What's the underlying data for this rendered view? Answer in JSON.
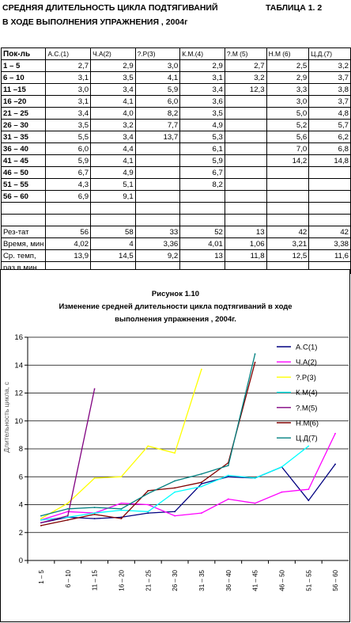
{
  "header": {
    "title_line1": "СРЕДНЯЯ ДЛИТЕЛЬНОСТЬ ЦИКЛА ПОДТЯГИВАНИЙ",
    "title_line2": "В ХОДЕ ВЫПОЛНЕНИЯ УПРАЖНЕНИЯ , 2004г",
    "table_label": "ТАБЛИЦА 1. 2"
  },
  "table": {
    "columns": [
      "Пок-ль",
      "А.С.(1)",
      "Ч.А(2)",
      "?.Р(3)",
      "К.М.(4)",
      "?.М (5)",
      "Н.М (6)",
      "Ц.Д.(7)"
    ],
    "rows": [
      {
        "label": "1  –  5",
        "values": [
          "2,7",
          "2,9",
          "3,0",
          "2,9",
          "2,7",
          "2,5",
          "3,2"
        ]
      },
      {
        "label": "6  – 10",
        "values": [
          "3,1",
          "3,5",
          "4,1",
          "3,1",
          "3,2",
          "2,9",
          "3,7"
        ]
      },
      {
        "label": "11 –15",
        "values": [
          "3,0",
          "3,4",
          "5,9",
          "3,4",
          "12,3",
          "3,3",
          "3,8"
        ]
      },
      {
        "label": "16 –20",
        "values": [
          "3,1",
          "4,1",
          "6,0",
          "3,6",
          "",
          "3,0",
          "3,7"
        ]
      },
      {
        "label": "21 – 25",
        "values": [
          "3,4",
          "4,0",
          "8,2",
          "3,5",
          "",
          "5,0",
          "4,8"
        ]
      },
      {
        "label": "26 – 30",
        "values": [
          "3,5",
          "3,2",
          "7,7",
          "4,9",
          "",
          "5,2",
          "5,7"
        ]
      },
      {
        "label": "31 – 35",
        "values": [
          "5,5",
          "3,4",
          "13,7",
          "5,3",
          "",
          "5,6",
          "6,2"
        ]
      },
      {
        "label": "36 – 40",
        "values": [
          "6,0",
          "4,4",
          "",
          "6,1",
          "",
          "7,0",
          "6,8"
        ]
      },
      {
        "label": "41 – 45",
        "values": [
          "5,9",
          "4,1",
          "",
          "5,9",
          "",
          "14,2",
          "14,8"
        ]
      },
      {
        "label": "46 – 50",
        "values": [
          "6,7",
          "4,9",
          "",
          "6,7",
          "",
          "",
          ""
        ]
      },
      {
        "label": "51 – 55",
        "values": [
          "4,3",
          "5,1",
          "",
          "8,2",
          "",
          "",
          ""
        ]
      },
      {
        "label": "56 – 60",
        "values": [
          "6,9",
          "9,1",
          "",
          "",
          "",
          "",
          ""
        ]
      }
    ],
    "summary_rows": [
      {
        "label": "Рез-тат",
        "values": [
          "56",
          "58",
          "33",
          "52",
          "13",
          "42",
          "42"
        ]
      },
      {
        "label": "Время, мин",
        "values": [
          "4,02",
          "4",
          "3,36",
          "4,01",
          "1,06",
          "3,21",
          "3,38"
        ]
      },
      {
        "label": "Ср. темп,",
        "values": [
          "13,9",
          "14,5",
          "9,2",
          "13",
          "11,8",
          "12,5",
          "11,6"
        ]
      },
      {
        "label": "раз в мин",
        "values": [
          "",
          "",
          "",
          "",
          "",
          "",
          ""
        ]
      }
    ]
  },
  "chart_data": {
    "type": "line",
    "title": "Рисунок 1.10",
    "subtitle_line1": "Изменение средней длительности цикла подтягиваний в ходе",
    "subtitle_line2": "выполнения упражнения , 2004г.",
    "ylabel": "Длительность цикла, с",
    "xlabel": "",
    "ylim": [
      0,
      16
    ],
    "yticks": [
      0,
      2,
      4,
      6,
      8,
      10,
      12,
      14,
      16
    ],
    "grid": "horizontal",
    "legend": "right",
    "categories": [
      "1 – 5",
      "6 – 10",
      "11 – 15",
      "16 – 20",
      "21 – 25",
      "26 – 30",
      "31 – 35",
      "36 – 40",
      "41 – 45",
      "46 – 50",
      "51 – 55",
      "56 – 60"
    ],
    "series": [
      {
        "name": "А.С(1)",
        "color": "#000080",
        "values": [
          2.7,
          3.1,
          3.0,
          3.1,
          3.4,
          3.5,
          5.5,
          6.0,
          5.9,
          6.7,
          4.3,
          6.9
        ]
      },
      {
        "name": "Ч.А(2)",
        "color": "#ff00ff",
        "values": [
          2.9,
          3.5,
          3.4,
          4.1,
          4.0,
          3.2,
          3.4,
          4.4,
          4.1,
          4.9,
          5.1,
          9.1
        ]
      },
      {
        "name": "?.Р(3)",
        "color": "#ffff00",
        "values": [
          3.0,
          4.1,
          5.9,
          6.0,
          8.2,
          7.7,
          13.7,
          null,
          null,
          null,
          null,
          null
        ]
      },
      {
        "name": "К.М(4)",
        "color": "#00ffff",
        "values": [
          2.9,
          3.1,
          3.4,
          3.6,
          3.5,
          4.9,
          5.3,
          6.1,
          5.9,
          6.7,
          8.2,
          null
        ]
      },
      {
        "name": "?.М(5)",
        "color": "#800080",
        "values": [
          2.7,
          3.2,
          12.3,
          null,
          null,
          null,
          null,
          null,
          null,
          null,
          null,
          null
        ]
      },
      {
        "name": "Н.М(6)",
        "color": "#800000",
        "values": [
          2.5,
          2.9,
          3.3,
          3.0,
          5.0,
          5.2,
          5.6,
          7.0,
          14.2,
          null,
          null,
          null
        ]
      },
      {
        "name": "Ц.Д(7)",
        "color": "#008080",
        "values": [
          3.2,
          3.7,
          3.8,
          3.7,
          4.8,
          5.7,
          6.2,
          6.8,
          14.8,
          null,
          null,
          null
        ]
      }
    ]
  }
}
